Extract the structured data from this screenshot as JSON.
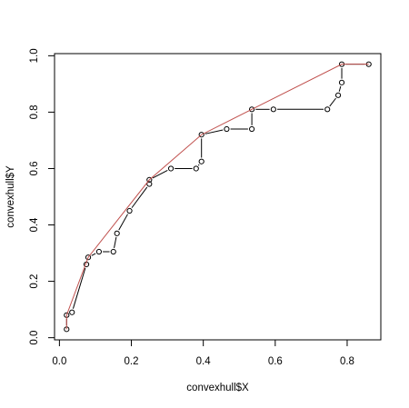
{
  "chart_data": {
    "type": "line",
    "xlabel": "convexhull$X",
    "ylabel": "convexhull$Y",
    "xlim": [
      0.02,
      0.86
    ],
    "ylim": [
      0.03,
      0.97
    ],
    "xticks": [
      "0.0",
      "0.2",
      "0.4",
      "0.6",
      "0.8"
    ],
    "yticks": [
      "0.0",
      "0.2",
      "0.4",
      "0.6",
      "0.8",
      "1.0"
    ],
    "grid": false,
    "series": [
      {
        "style": "points-and-line",
        "color": "#000000",
        "x": [
          0.02,
          0.02,
          0.035,
          0.075,
          0.08,
          0.11,
          0.15,
          0.16,
          0.195,
          0.25,
          0.25,
          0.31,
          0.38,
          0.395,
          0.395,
          0.465,
          0.535,
          0.535,
          0.595,
          0.745,
          0.775,
          0.785,
          0.785,
          0.86
        ],
        "y": [
          0.03,
          0.08,
          0.09,
          0.26,
          0.285,
          0.305,
          0.305,
          0.37,
          0.45,
          0.545,
          0.56,
          0.6,
          0.6,
          0.625,
          0.72,
          0.74,
          0.74,
          0.81,
          0.81,
          0.81,
          0.86,
          0.905,
          0.97,
          0.97
        ]
      },
      {
        "style": "line",
        "color": "#c0504d",
        "x": [
          0.02,
          0.02,
          0.08,
          0.25,
          0.395,
          0.535,
          0.785,
          0.86
        ],
        "y": [
          0.03,
          0.08,
          0.285,
          0.56,
          0.72,
          0.81,
          0.97,
          0.97
        ]
      }
    ]
  }
}
